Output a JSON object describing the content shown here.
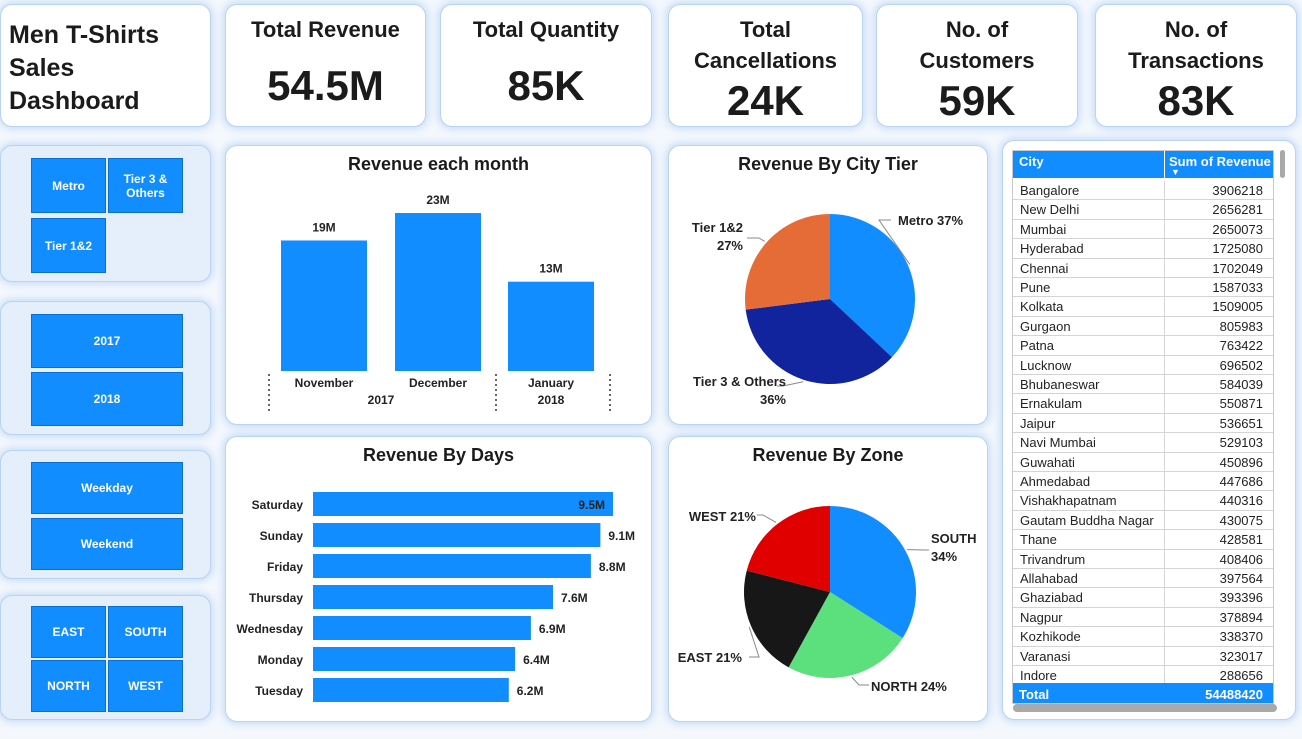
{
  "dashboard": {
    "title_lines": [
      "Men T-Shirts",
      "Sales",
      "Dashboard"
    ]
  },
  "kpis": [
    {
      "label_lines": [
        "Total Revenue"
      ],
      "value": "54.5M"
    },
    {
      "label_lines": [
        "Total Quantity"
      ],
      "value": "85K"
    },
    {
      "label_lines": [
        "Total",
        "Cancellations"
      ],
      "value": "24K"
    },
    {
      "label_lines": [
        "No. of",
        "Customers"
      ],
      "value": "59K"
    },
    {
      "label_lines": [
        "No. of",
        "Transactions"
      ],
      "value": "83K"
    }
  ],
  "slicers": {
    "city_tier": [
      "Metro",
      "Tier 3 & Others",
      "Tier 1&2"
    ],
    "year": [
      "2017",
      "2018"
    ],
    "day_type": [
      "Weekday",
      "Weekend"
    ],
    "zone": [
      "EAST",
      "SOUTH",
      "NORTH",
      "WEST"
    ]
  },
  "colors": {
    "accent": "#118dff",
    "dark_blue": "#12239e",
    "orange": "#e66c37",
    "red": "#e00000",
    "black": "#171717",
    "green": "#5ce07e"
  },
  "chart_data": [
    {
      "id": "monthly",
      "type": "bar",
      "title": "Revenue each month",
      "categories": [
        "November",
        "December",
        "January"
      ],
      "groups": [
        "2017",
        "2017",
        "2018"
      ],
      "values": [
        19,
        23,
        13
      ],
      "labels": [
        "19M",
        "23M",
        "13M"
      ],
      "unit": "M"
    },
    {
      "id": "tier",
      "type": "pie",
      "title": "Revenue By City Tier",
      "slices": [
        {
          "name": "Metro",
          "pct": 37,
          "color": "#118dff"
        },
        {
          "name": "Tier 3 & Others",
          "pct": 36,
          "color": "#12239e"
        },
        {
          "name": "Tier 1&2",
          "pct": 27,
          "color": "#e66c37"
        }
      ]
    },
    {
      "id": "days",
      "type": "bar",
      "orientation": "horizontal",
      "title": "Revenue By Days",
      "categories": [
        "Saturday",
        "Sunday",
        "Friday",
        "Thursday",
        "Wednesday",
        "Monday",
        "Tuesday"
      ],
      "values": [
        9.5,
        9.1,
        8.8,
        7.6,
        6.9,
        6.4,
        6.2
      ],
      "labels": [
        "9.5M",
        "9.1M",
        "8.8M",
        "7.6M",
        "6.9M",
        "6.4M",
        "6.2M"
      ],
      "unit": "M"
    },
    {
      "id": "zone",
      "type": "pie",
      "title": "Revenue By Zone",
      "slices": [
        {
          "name": "SOUTH",
          "pct": 34,
          "color": "#118dff"
        },
        {
          "name": "NORTH",
          "pct": 24,
          "color": "#5ce07e"
        },
        {
          "name": "EAST",
          "pct": 21,
          "color": "#171717"
        },
        {
          "name": "WEST",
          "pct": 21,
          "color": "#e00000"
        }
      ]
    },
    {
      "id": "city_table",
      "type": "table",
      "columns": [
        "City",
        "Sum of Revenue"
      ],
      "rows": [
        [
          "Bangalore",
          "3906218"
        ],
        [
          "New Delhi",
          "2656281"
        ],
        [
          "Mumbai",
          "2650073"
        ],
        [
          "Hyderabad",
          "1725080"
        ],
        [
          "Chennai",
          "1702049"
        ],
        [
          "Pune",
          "1587033"
        ],
        [
          "Kolkata",
          "1509005"
        ],
        [
          "Gurgaon",
          "805983"
        ],
        [
          "Patna",
          "763422"
        ],
        [
          "Lucknow",
          "696502"
        ],
        [
          "Bhubaneswar",
          "584039"
        ],
        [
          "Ernakulam",
          "550871"
        ],
        [
          "Jaipur",
          "536651"
        ],
        [
          "Navi Mumbai",
          "529103"
        ],
        [
          "Guwahati",
          "450896"
        ],
        [
          "Ahmedabad",
          "447686"
        ],
        [
          "Vishakhapatnam",
          "440316"
        ],
        [
          "Gautam Buddha Nagar",
          "430075"
        ],
        [
          "Thane",
          "428581"
        ],
        [
          "Trivandrum",
          "408406"
        ],
        [
          "Allahabad",
          "397564"
        ],
        [
          "Ghaziabad",
          "393396"
        ],
        [
          "Nagpur",
          "378894"
        ],
        [
          "Kozhikode",
          "338370"
        ],
        [
          "Varanasi",
          "323017"
        ],
        [
          "Indore",
          "288656"
        ]
      ],
      "total_label": "Total",
      "total_value": "54488420"
    }
  ]
}
